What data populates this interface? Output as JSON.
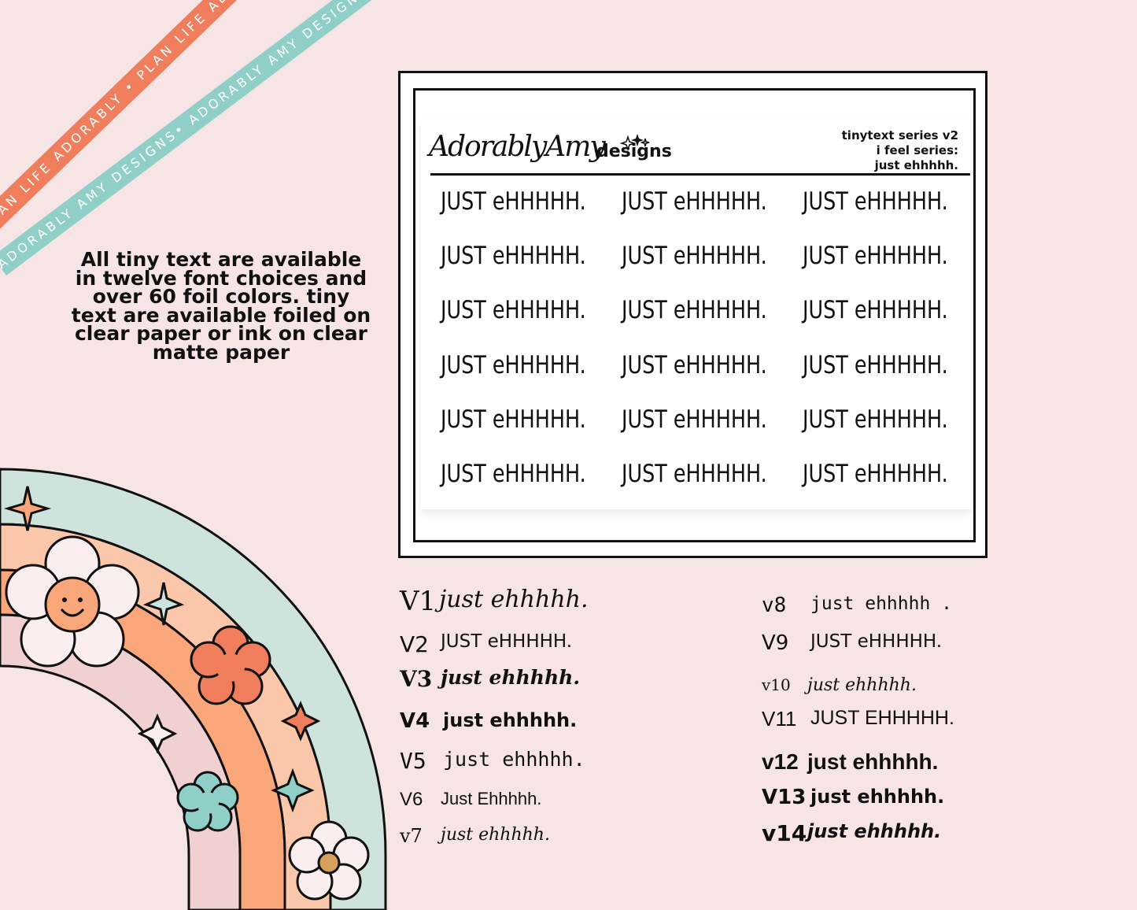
{
  "ribbons": {
    "orange_text": "PLAN LIFE ADORABLY • PLAN LIFE ADORABLY • PLAN LIFE ADORABLY",
    "teal_text": "ADORABLY AMY DESIGNS• ADORABLY AMY DESIGNS• ADORABLY AMY DESIGNS"
  },
  "info": {
    "text": "All tiny text are available in twelve font choices and over 60 foil colors.  tiny text are available foiled on clear paper or ink on clear matte paper"
  },
  "sheet": {
    "brand_script": "AdorablyAmy",
    "brand_word": "designs",
    "info_line1": "tinytext series v2",
    "info_line2": "i feel series:",
    "info_line3": "just ehhhhh.",
    "sticker_text": "JUST eHHHHH."
  },
  "variants": [
    {
      "num": "V1",
      "text": "just ehhhhh."
    },
    {
      "num": "V2",
      "text": "JUST eHHHHH."
    },
    {
      "num": "V3",
      "text": "just ehhhhh."
    },
    {
      "num": "V4",
      "text": "just ehhhhh."
    },
    {
      "num": "V5",
      "text": "just ehhhhh."
    },
    {
      "num": "V6",
      "text": "Just Ehhhhh."
    },
    {
      "num": "v7",
      "text": "just ehhhhh."
    },
    {
      "num": "v8",
      "text": "just ehhhhh ."
    },
    {
      "num": "V9",
      "text": "JUST eHHHHH."
    },
    {
      "num": "v10",
      "text": "just ehhhhh."
    },
    {
      "num": "V11",
      "text": "JUST EHHHHH."
    },
    {
      "num": "v12",
      "text": "just ehhhhh."
    },
    {
      "num": "V13",
      "text": "just ehhhhh."
    },
    {
      "num": "v14",
      "text": "just ehhhhh."
    }
  ],
  "colors": {
    "background": "#f7e5e6",
    "orange": "#f07e5d",
    "teal": "#8fcfc8",
    "peach": "#f9a67a",
    "light_peach": "#fbc7aa",
    "pale_pink": "#f1d0d1",
    "sage": "#cfe3dd"
  }
}
